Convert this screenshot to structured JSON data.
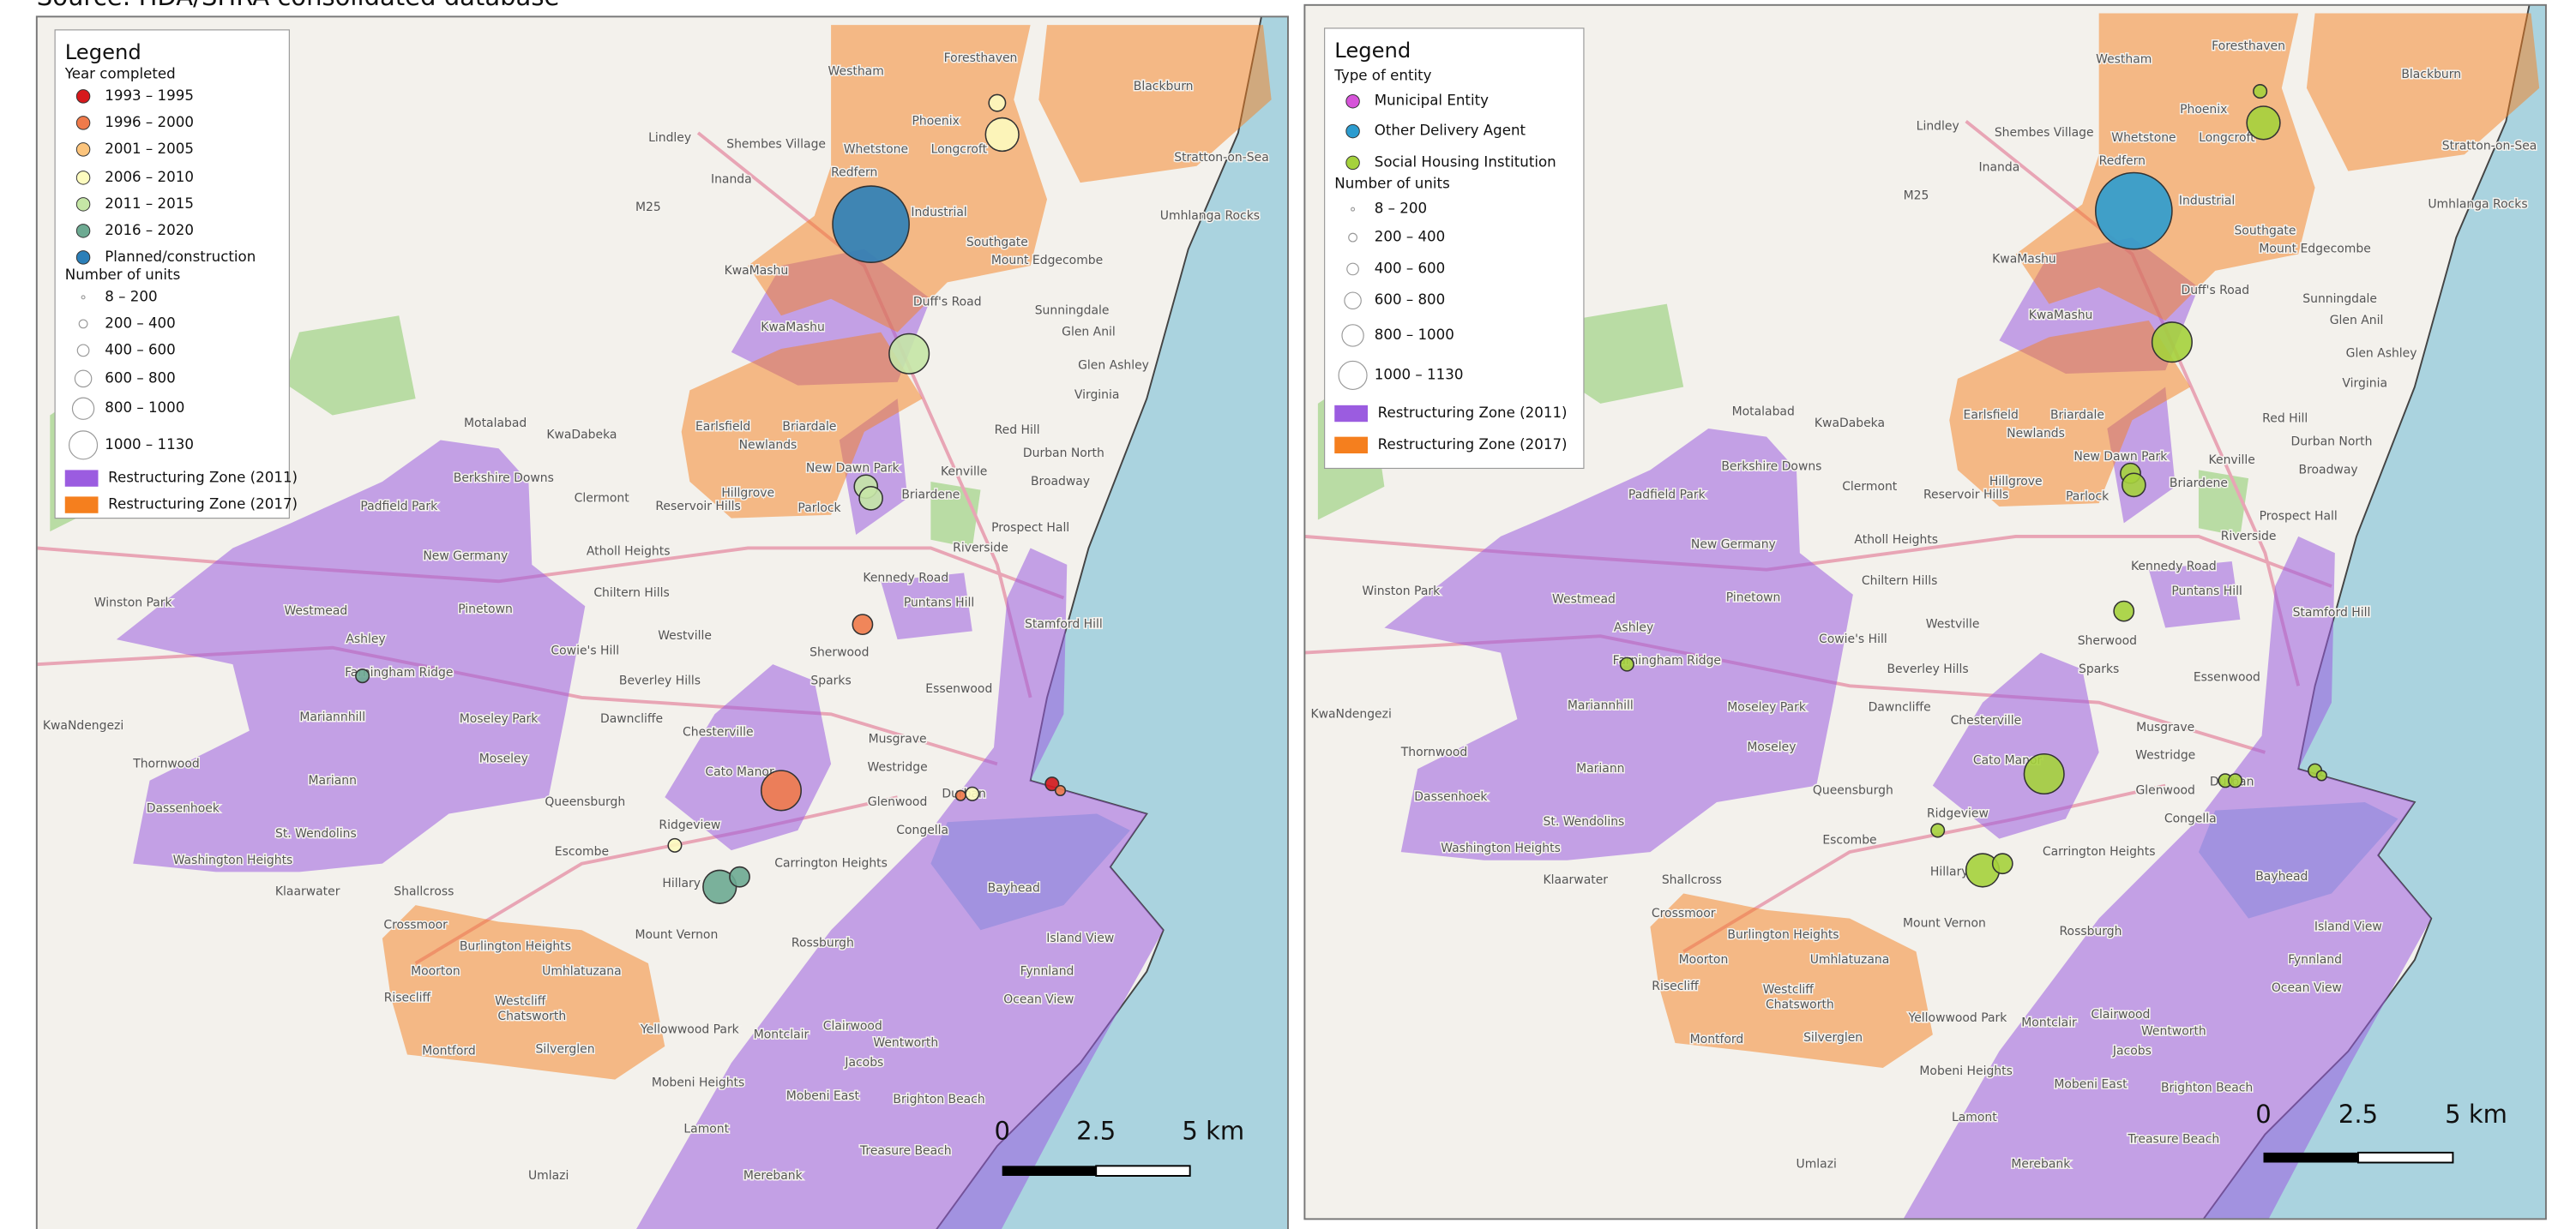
{
  "source": "Source: HDA/SHRA consolidated database",
  "maps": [
    {
      "legend": {
        "title": "Legend",
        "groups": [
          {
            "heading": "Year completed",
            "items": [
              {
                "label": "1993 – 1995",
                "color": "#d7191c"
              },
              {
                "label": "1996 – 2000",
                "color": "#ef7a4a"
              },
              {
                "label": "2001 – 2005",
                "color": "#fcc47c"
              },
              {
                "label": "2006 – 2010",
                "color": "#fdfbbf"
              },
              {
                "label": "2011 – 2015",
                "color": "#c5e6a6"
              },
              {
                "label": "2016 – 2020",
                "color": "#6daa92"
              },
              {
                "label": "Planned/construction",
                "color": "#2b7fb8"
              }
            ]
          },
          {
            "heading": "Number of units",
            "items": [
              {
                "label": "8 – 200"
              },
              {
                "label": "200 – 400"
              },
              {
                "label": "400 – 600"
              },
              {
                "label": "600 – 800"
              },
              {
                "label": "800 – 1000"
              },
              {
                "label": "1000 – 1130"
              }
            ]
          },
          {
            "items": [
              {
                "label": "Restructuring Zone (2011)",
                "color": "#9b5ce0"
              },
              {
                "label": "Restructuring Zone (2017)",
                "color": "#f57f1e"
              }
            ]
          }
        ]
      },
      "scale_bar": [
        "0",
        "2.5",
        "5 km"
      ]
    },
    {
      "legend": {
        "title": "Legend",
        "groups": [
          {
            "heading": "Type of entity",
            "items": [
              {
                "label": "Municipal Entity",
                "color": "#d653d9"
              },
              {
                "label": "Other Delivery Agent",
                "color": "#2c9ccf"
              },
              {
                "label": "Social Housing Institution",
                "color": "#a5d23c"
              }
            ]
          },
          {
            "heading": "Number of units",
            "items": [
              {
                "label": "8 – 200"
              },
              {
                "label": "200 – 400"
              },
              {
                "label": "400 – 600"
              },
              {
                "label": "600 – 800"
              },
              {
                "label": "800 – 1000"
              },
              {
                "label": "1000 – 1130"
              }
            ]
          },
          {
            "items": [
              {
                "label": "Restructuring Zone (2011)",
                "color": "#9b5ce0"
              },
              {
                "label": "Restructuring Zone (2017)",
                "color": "#f57f1e"
              }
            ]
          }
        ]
      },
      "scale_bar": [
        "0",
        "2.5",
        "5 km"
      ]
    }
  ],
  "place_labels": [
    "Westham",
    "Foresthaven",
    "Phoenix",
    "Blackburn",
    "Lindley",
    "Shembes Village",
    "Whetstone",
    "Longcroft",
    "Inanda",
    "Redfern",
    "Industrial",
    "Stratton-on-Sea",
    "Umhlanga Rocks",
    "M25",
    "Southgate",
    "Mount Edgecombe",
    "KwaMashu",
    "Duff's Road",
    "Sunningdale",
    "Glen Anil",
    "KwaMashu",
    "Glen Ashley",
    "Virginia",
    "Motalabad",
    "KwaDabeka",
    "Earlsfield",
    "Briardale",
    "Newlands",
    "Red Hill",
    "Durban North",
    "Berkshire Downs",
    "Clermont",
    "Padfield Park",
    "Kenville",
    "New Dawn Park",
    "Broadway",
    "Hillgrove",
    "Reservoir Hills",
    "Parlock",
    "Briardene",
    "Prospect Hall",
    "New Germany",
    "Riverside",
    "Atholl Heights",
    "Winston Park",
    "Westmead",
    "Pinetown",
    "Chiltern Hills",
    "Kennedy Road",
    "Puntans Hill",
    "Ashley",
    "Westville",
    "Cowie's Hill",
    "Stamford Hill",
    "Farningham Ridge",
    "Beverley Hills",
    "Sparks",
    "Sherwood",
    "Essenwood",
    "KwaNdengezi",
    "Mariannhill",
    "Moseley Park",
    "Dawncliffe",
    "Chesterville",
    "Musgrave",
    "Thornwood",
    "Mariann",
    "Moseley",
    "Cato Manor",
    "Westridge",
    "Durban",
    "Queensburgh",
    "Dassenhoek",
    "St. Wendolins",
    "Glenwood",
    "Congella",
    "Washington Heights",
    "Escombe",
    "Ridgeview",
    "Carrington Heights",
    "Shallcross",
    "Klaarwater",
    "Hillary",
    "Bayhead",
    "Crossmoor",
    "Burlington Heights",
    "Mount Vernon",
    "Rossburgh",
    "Island View",
    "Moorton",
    "Umhlatuzana",
    "Fynnland",
    "Risecliff",
    "Westcliff",
    "Ocean View",
    "Chatsworth",
    "Clairwood",
    "Montclair",
    "Montford",
    "Silverglen",
    "Wentworth",
    "Jacobs",
    "Mobeni Heights",
    "Mobeni East",
    "Brighton Beach",
    "Lamont",
    "Treasure Beach",
    "Umlazi",
    "Merebank",
    "Yellowwood Park"
  ]
}
